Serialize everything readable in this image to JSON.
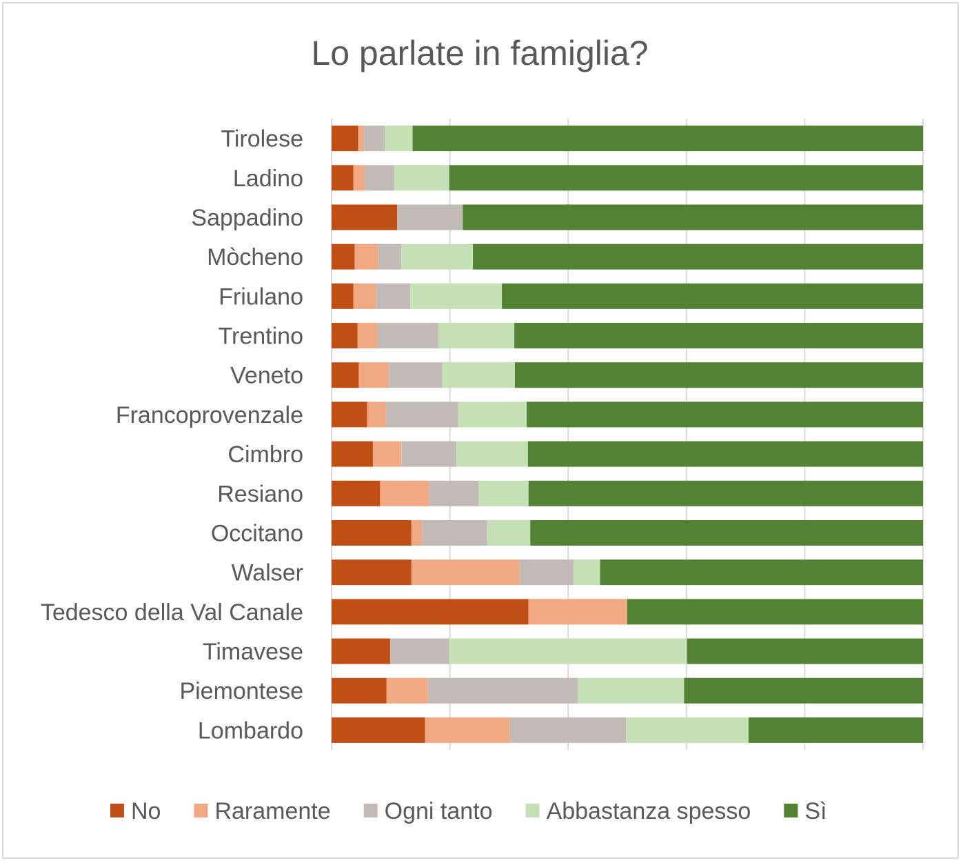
{
  "chart_data": {
    "type": "bar",
    "orientation": "horizontal",
    "stacked": "100%",
    "title": "Lo parlate in famiglia?",
    "categories": [
      "Tirolese",
      "Ladino",
      "Sappadino",
      "Mòcheno",
      "Friulano",
      "Trentino",
      "Veneto",
      "Francoprovenzale",
      "Cimbro",
      "Resiano",
      "Occitano",
      "Walser",
      "Tedesco della Val Canale",
      "Timavese",
      "Piemontese",
      "Lombardo"
    ],
    "series": [
      {
        "name": "No",
        "color": "#c04f15",
        "values": [
          4.5,
          3.7,
          11.1,
          3.9,
          3.7,
          4.4,
          4.6,
          6.0,
          7.0,
          8.2,
          13.5,
          13.5,
          33.3,
          9.9,
          9.3,
          15.8
        ]
      },
      {
        "name": "Raramente",
        "color": "#f1a983",
        "values": [
          1.0,
          1.9,
          0.0,
          4.0,
          3.8,
          3.3,
          5.1,
          3.2,
          4.8,
          8.3,
          1.8,
          18.3,
          16.7,
          0.0,
          7.0,
          14.3
        ]
      },
      {
        "name": "Ogni tanto",
        "color": "#c2bab6",
        "values": [
          3.5,
          5.0,
          11.1,
          3.9,
          5.8,
          10.4,
          9.0,
          12.2,
          9.3,
          8.4,
          11.0,
          9.1,
          0.0,
          10.0,
          25.3,
          19.7
        ]
      },
      {
        "name": "Abbastanza spesso",
        "color": "#c5e0b4",
        "values": [
          4.7,
          9.3,
          0.0,
          12.1,
          15.5,
          12.8,
          12.3,
          11.6,
          12.1,
          8.4,
          7.3,
          4.5,
          0.0,
          40.2,
          18.0,
          20.7
        ]
      },
      {
        "name": "Sì",
        "color": "#548235",
        "values": [
          86.3,
          80.1,
          77.8,
          76.1,
          71.2,
          69.1,
          69.0,
          67.0,
          66.8,
          66.7,
          66.4,
          54.6,
          50.0,
          39.9,
          40.4,
          29.5
        ]
      }
    ],
    "xlim": [
      0,
      100
    ],
    "x_gridlines": [
      0,
      20,
      40,
      60,
      80,
      100
    ],
    "grid": true,
    "legend_position": "bottom"
  }
}
